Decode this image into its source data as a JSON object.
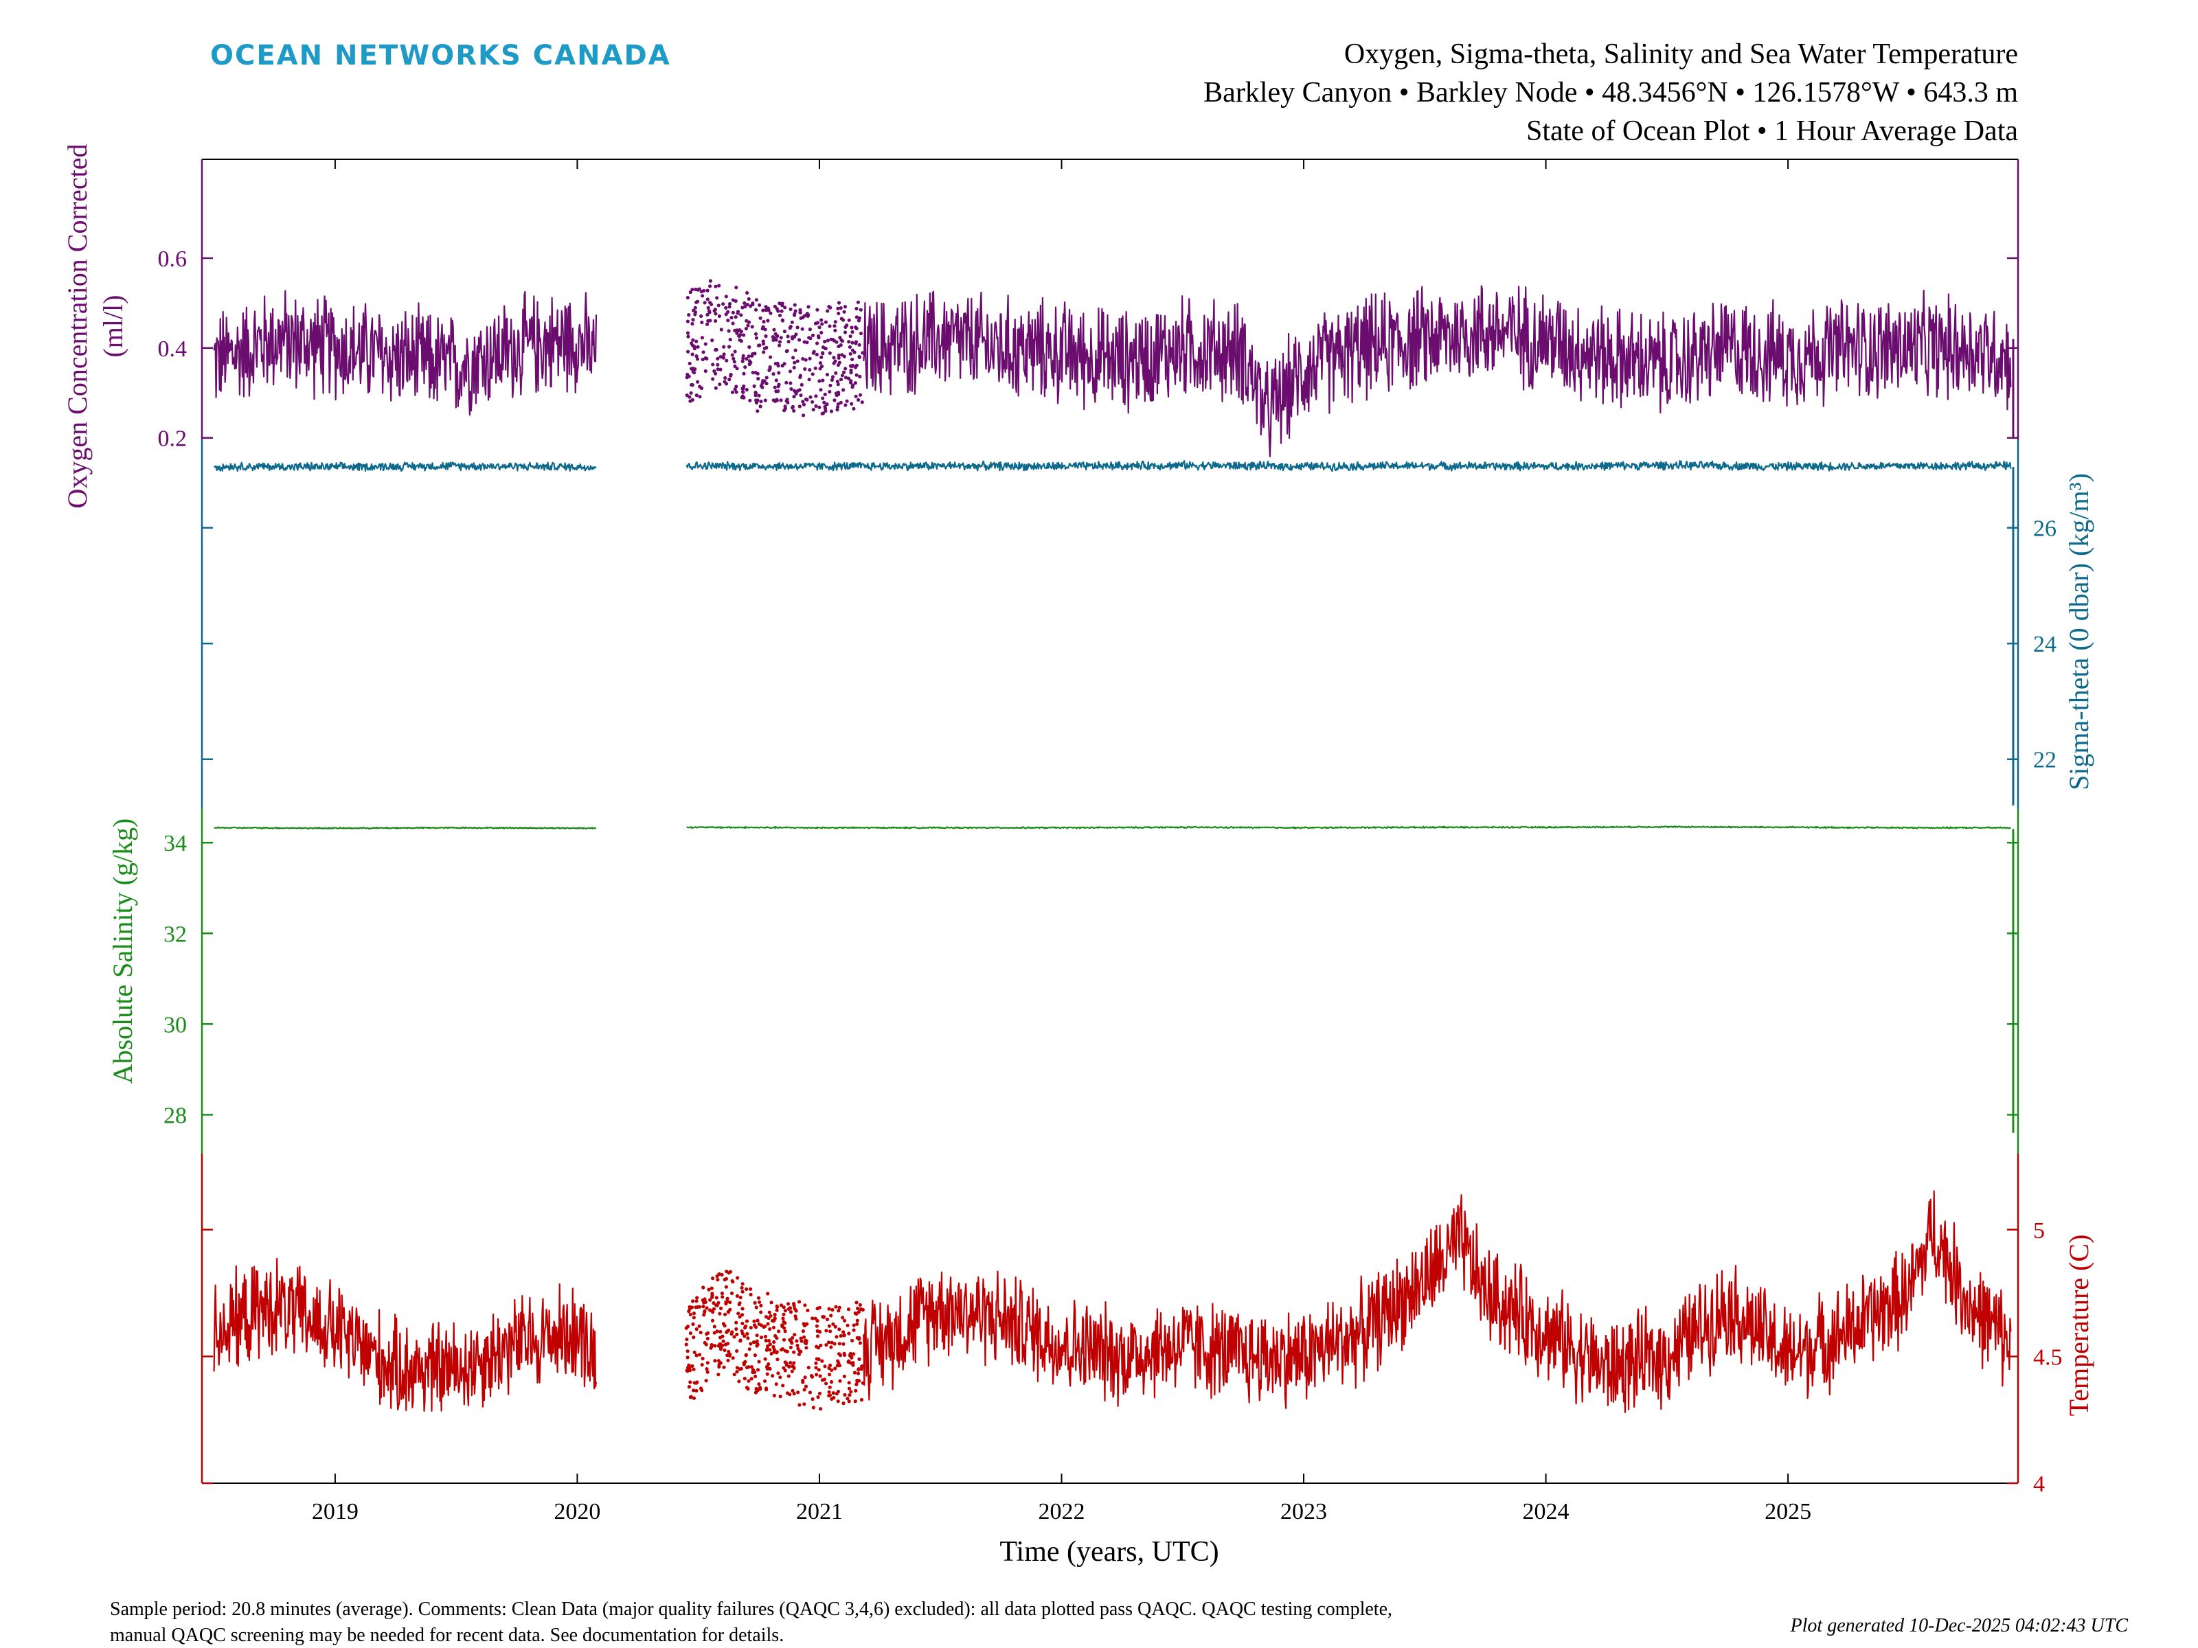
{
  "brand": {
    "name": "OCEAN NETWORKS CANADA",
    "color": "#1d9bc6"
  },
  "header": {
    "title_line1": "Oxygen, Sigma-theta, Salinity and Sea Water Temperature",
    "title_line2": "Barkley Canyon • Barkley Node • 48.3456°N • 126.1578°W • 643.3 m",
    "title_line3": "State of Ocean Plot • 1 Hour Average Data"
  },
  "footer": {
    "comment_line1": "Sample period: 20.8 minutes (average). Comments: Clean Data (major quality failures (QAQC 3,4,6) excluded): all data plotted pass QAQC. QAQC testing complete,",
    "comment_line2": "manual QAQC screening may be needed for recent data. See documentation for details.",
    "generated": "Plot generated 10-Dec-2025 04:02:43 UTC"
  },
  "chart_data": {
    "type": "line",
    "x_axis": {
      "label": "Time (years, UTC)",
      "ticks": [
        "2019",
        "2020",
        "2021",
        "2022",
        "2023",
        "2024",
        "2025"
      ],
      "range": [
        2018.45,
        2025.95
      ]
    },
    "gaps": [
      [
        2020.08,
        2020.45
      ]
    ],
    "series": [
      {
        "key": "oxygen",
        "name": "Oxygen Concentration Corrected",
        "unit": "(ml/l)",
        "color": "#6b0d6e",
        "axis_side": "left",
        "axis_ticks": [
          "0.2",
          "0.4",
          "0.6"
        ],
        "x": [
          2018.5,
          2018.75,
          2019.0,
          2019.25,
          2019.5,
          2019.75,
          2020.0,
          2020.08,
          2020.45,
          2020.6,
          2020.75,
          2021.0,
          2021.25,
          2021.5,
          2021.75,
          2022.0,
          2022.25,
          2022.5,
          2022.75,
          2022.85,
          2023.0,
          2023.25,
          2023.5,
          2023.75,
          2024.0,
          2024.25,
          2024.5,
          2024.75,
          2025.0,
          2025.25,
          2025.5,
          2025.75,
          2025.92
        ],
        "y": [
          0.37,
          0.42,
          0.4,
          0.38,
          0.36,
          0.4,
          0.42,
          0.38,
          0.4,
          0.44,
          0.38,
          0.37,
          0.4,
          0.42,
          0.4,
          0.39,
          0.37,
          0.4,
          0.39,
          0.25,
          0.35,
          0.4,
          0.42,
          0.44,
          0.42,
          0.38,
          0.36,
          0.4,
          0.38,
          0.4,
          0.4,
          0.4,
          0.38
        ]
      },
      {
        "key": "sigma",
        "name": "Sigma-theta (0 dbar) (kg/m³)",
        "unit": "(kg/m³)",
        "color": "#0d6a8c",
        "axis_side": "right",
        "axis_ticks": [
          "22",
          "24",
          "26"
        ],
        "x": [
          2018.5,
          2019.0,
          2019.5,
          2020.08,
          2020.45,
          2021.0,
          2021.5,
          2022.0,
          2022.5,
          2023.0,
          2023.5,
          2024.0,
          2024.5,
          2025.0,
          2025.5,
          2025.92
        ],
        "y": [
          27.06,
          27.05,
          27.07,
          27.05,
          27.07,
          27.06,
          27.07,
          27.06,
          27.08,
          27.06,
          27.07,
          27.06,
          27.08,
          27.06,
          27.07,
          27.07
        ]
      },
      {
        "key": "salinity",
        "name": "Absolute Salinity (g/kg)",
        "unit": "(g/kg)",
        "color": "#1a8c1a",
        "axis_side": "left",
        "axis_ticks": [
          "28",
          "30",
          "32",
          "34"
        ],
        "x": [
          2018.5,
          2019.0,
          2019.5,
          2020.08,
          2020.45,
          2021.0,
          2021.5,
          2022.0,
          2022.5,
          2023.0,
          2023.5,
          2024.0,
          2024.5,
          2025.0,
          2025.5,
          2025.92
        ],
        "y": [
          34.33,
          34.32,
          34.33,
          34.32,
          34.34,
          34.33,
          34.33,
          34.33,
          34.34,
          34.33,
          34.34,
          34.34,
          34.35,
          34.34,
          34.33,
          34.33
        ]
      },
      {
        "key": "temperature",
        "name": "Temperature (C)",
        "unit": "(C)",
        "color": "#c00000",
        "axis_side": "right",
        "axis_ticks": [
          "4",
          "4.5",
          "5"
        ],
        "x": [
          2018.5,
          2018.75,
          2019.0,
          2019.25,
          2019.5,
          2019.75,
          2020.0,
          2020.08,
          2020.45,
          2020.6,
          2020.75,
          2021.0,
          2021.25,
          2021.5,
          2021.75,
          2022.0,
          2022.25,
          2022.5,
          2022.75,
          2023.0,
          2023.25,
          2023.5,
          2023.65,
          2023.75,
          2024.0,
          2024.25,
          2024.5,
          2024.75,
          2025.0,
          2025.25,
          2025.5,
          2025.6,
          2025.75,
          2025.92
        ],
        "y": [
          4.6,
          4.7,
          4.6,
          4.45,
          4.45,
          4.55,
          4.6,
          4.5,
          4.5,
          4.65,
          4.55,
          4.5,
          4.55,
          4.7,
          4.65,
          4.55,
          4.5,
          4.55,
          4.5,
          4.5,
          4.6,
          4.8,
          4.95,
          4.75,
          4.6,
          4.45,
          4.5,
          4.7,
          4.5,
          4.6,
          4.75,
          5.0,
          4.7,
          4.55
        ]
      }
    ]
  }
}
